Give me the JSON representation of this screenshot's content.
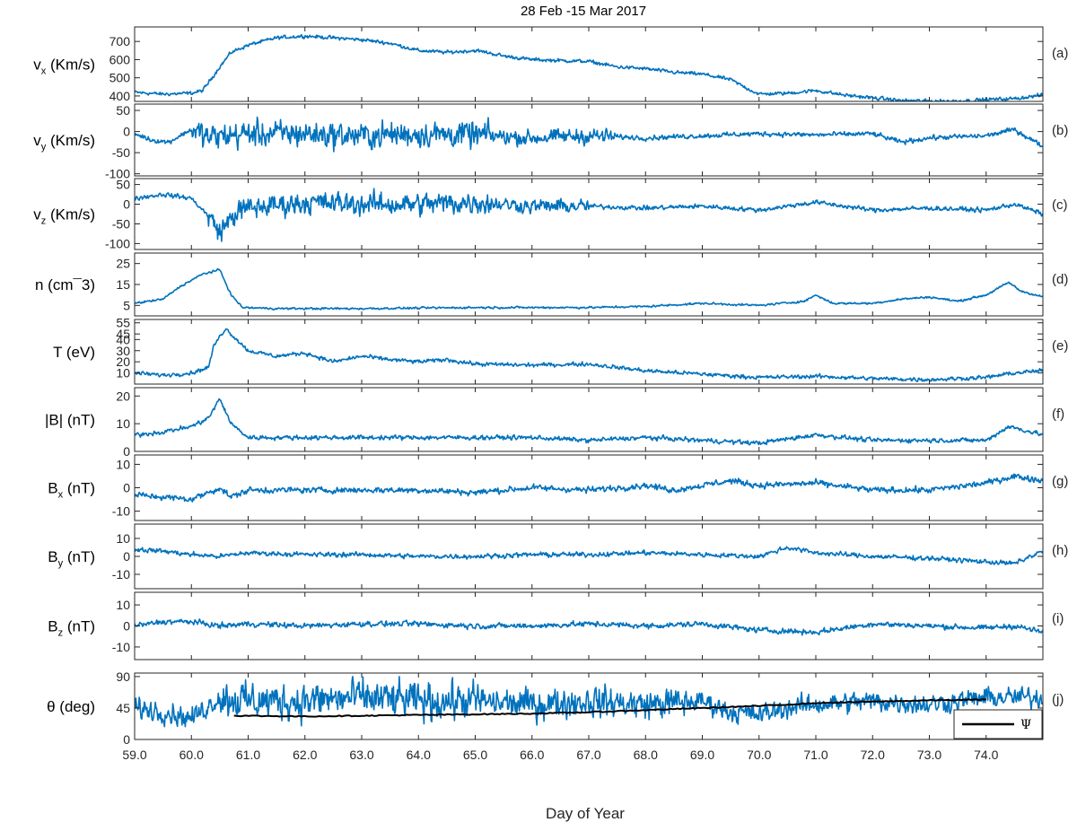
{
  "chart_data": {
    "type": "line",
    "title": "28 Feb -15 Mar 2017",
    "xlabel": "Day of Year",
    "xlim": [
      59.0,
      75.0
    ],
    "xticks": [
      "59.0",
      "60.0",
      "61.0",
      "62.0",
      "63.0",
      "64.0",
      "65.0",
      "66.0",
      "67.0",
      "68.0",
      "69.0",
      "70.0",
      "71.0",
      "72.0",
      "73.0",
      "74.0"
    ],
    "series_color": "#0072BD",
    "psi_color": "#000000",
    "panels": [
      {
        "id": "a",
        "tag": "(a)",
        "ylabel_main": "v",
        "ylabel_sub": "x",
        "ylabel_rest": " (Km/s)",
        "ylim": [
          370,
          780
        ],
        "yticks": [
          400,
          500,
          600,
          700
        ],
        "noise": 12,
        "trend": [
          [
            59.0,
            420
          ],
          [
            59.5,
            410
          ],
          [
            60.0,
            415
          ],
          [
            60.2,
            430
          ],
          [
            60.5,
            560
          ],
          [
            60.7,
            640
          ],
          [
            61.0,
            680
          ],
          [
            61.5,
            720
          ],
          [
            62.0,
            730
          ],
          [
            62.5,
            720
          ],
          [
            63.0,
            710
          ],
          [
            63.5,
            690
          ],
          [
            64.0,
            650
          ],
          [
            64.5,
            640
          ],
          [
            65.0,
            650
          ],
          [
            65.2,
            640
          ],
          [
            65.5,
            620
          ],
          [
            66.0,
            600
          ],
          [
            67.0,
            590
          ],
          [
            67.5,
            560
          ],
          [
            68.0,
            550
          ],
          [
            68.5,
            530
          ],
          [
            69.0,
            520
          ],
          [
            69.5,
            490
          ],
          [
            69.8,
            440
          ],
          [
            70.0,
            410
          ],
          [
            70.5,
            415
          ],
          [
            71.0,
            430
          ],
          [
            71.5,
            405
          ],
          [
            72.0,
            390
          ],
          [
            72.5,
            375
          ],
          [
            73.0,
            372
          ],
          [
            73.5,
            372
          ],
          [
            74.0,
            380
          ],
          [
            74.5,
            385
          ],
          [
            75.0,
            405
          ]
        ]
      },
      {
        "id": "b",
        "tag": "(b)",
        "ylabel_main": "v",
        "ylabel_sub": "y",
        "ylabel_rest": " (Km/s)",
        "ylim": [
          -105,
          65
        ],
        "yticks": [
          -100,
          -50,
          0,
          50
        ],
        "noise": 7,
        "trend": [
          [
            59.0,
            -5
          ],
          [
            59.3,
            -20
          ],
          [
            59.6,
            -25
          ],
          [
            60.0,
            5
          ],
          [
            60.3,
            -15
          ],
          [
            60.6,
            -10
          ],
          [
            61.0,
            -5
          ],
          [
            62.0,
            -5
          ],
          [
            63.0,
            -10
          ],
          [
            64.0,
            -5
          ],
          [
            65.0,
            -8
          ],
          [
            66.0,
            -15
          ],
          [
            67.0,
            -10
          ],
          [
            68.0,
            -15
          ],
          [
            69.0,
            -10
          ],
          [
            70.0,
            -5
          ],
          [
            71.0,
            -8
          ],
          [
            72.0,
            -5
          ],
          [
            72.5,
            -25
          ],
          [
            73.0,
            -15
          ],
          [
            74.0,
            -10
          ],
          [
            74.5,
            5
          ],
          [
            75.0,
            -35
          ]
        ],
        "bursts": [
          [
            60.0,
            65.3,
            38
          ],
          [
            65.3,
            67.5,
            22
          ]
        ]
      },
      {
        "id": "c",
        "tag": "(c)",
        "ylabel_main": "v",
        "ylabel_sub": "z",
        "ylabel_rest": " (Km/s)",
        "ylim": [
          -115,
          65
        ],
        "yticks": [
          -100,
          -50,
          0,
          50
        ],
        "noise": 7,
        "trend": [
          [
            59.0,
            15
          ],
          [
            59.5,
            25
          ],
          [
            60.0,
            15
          ],
          [
            60.3,
            -30
          ],
          [
            60.5,
            -70
          ],
          [
            60.8,
            -20
          ],
          [
            61.0,
            -10
          ],
          [
            62.0,
            5
          ],
          [
            63.0,
            0
          ],
          [
            64.0,
            0
          ],
          [
            65.0,
            5
          ],
          [
            66.0,
            -5
          ],
          [
            67.0,
            -5
          ],
          [
            68.0,
            -10
          ],
          [
            69.0,
            -5
          ],
          [
            70.0,
            -15
          ],
          [
            71.0,
            5
          ],
          [
            72.0,
            -15
          ],
          [
            73.0,
            -10
          ],
          [
            74.0,
            -15
          ],
          [
            74.5,
            0
          ],
          [
            75.0,
            -25
          ]
        ],
        "bursts": [
          [
            60.3,
            65.3,
            35
          ],
          [
            65.3,
            67.0,
            22
          ]
        ]
      },
      {
        "id": "d",
        "tag": "(d)",
        "ylabel_main": "n (cm",
        "ylabel_sub": "",
        "ylabel_rest": "¯3)",
        "ylim": [
          0,
          30
        ],
        "yticks": [
          5,
          15,
          25
        ],
        "noise": 0.6,
        "trend": [
          [
            59.0,
            6
          ],
          [
            59.5,
            8
          ],
          [
            59.8,
            14
          ],
          [
            60.2,
            20
          ],
          [
            60.5,
            22
          ],
          [
            60.7,
            10
          ],
          [
            60.9,
            4
          ],
          [
            61.5,
            3.5
          ],
          [
            63.0,
            3.5
          ],
          [
            65.0,
            4
          ],
          [
            67.0,
            4
          ],
          [
            68.0,
            4.5
          ],
          [
            69.0,
            6
          ],
          [
            70.0,
            5
          ],
          [
            70.8,
            7
          ],
          [
            71.0,
            10
          ],
          [
            71.3,
            6
          ],
          [
            72.0,
            6
          ],
          [
            72.5,
            8
          ],
          [
            73.0,
            9
          ],
          [
            73.5,
            7
          ],
          [
            74.0,
            10
          ],
          [
            74.4,
            16
          ],
          [
            74.6,
            12
          ],
          [
            75.0,
            9
          ]
        ]
      },
      {
        "id": "e",
        "tag": "(e)",
        "ylabel_main": "T (eV)",
        "ylabel_sub": "",
        "ylabel_rest": "",
        "ylim": [
          0,
          58
        ],
        "yticks": [
          10,
          20,
          30,
          40,
          45,
          55
        ],
        "noise": 2.2,
        "trend": [
          [
            59.0,
            10
          ],
          [
            59.5,
            8
          ],
          [
            60.0,
            10
          ],
          [
            60.3,
            15
          ],
          [
            60.4,
            35
          ],
          [
            60.6,
            50
          ],
          [
            60.8,
            40
          ],
          [
            61.0,
            30
          ],
          [
            61.5,
            25
          ],
          [
            62.0,
            28
          ],
          [
            62.5,
            20
          ],
          [
            63.0,
            25
          ],
          [
            63.5,
            22
          ],
          [
            64.0,
            20
          ],
          [
            64.5,
            22
          ],
          [
            65.0,
            18
          ],
          [
            66.0,
            17
          ],
          [
            67.0,
            18
          ],
          [
            68.0,
            12
          ],
          [
            69.0,
            9
          ],
          [
            70.0,
            6
          ],
          [
            71.0,
            7
          ],
          [
            72.0,
            5
          ],
          [
            73.0,
            4
          ],
          [
            74.0,
            6
          ],
          [
            74.5,
            10
          ],
          [
            75.0,
            12
          ]
        ]
      },
      {
        "id": "f",
        "tag": "(f)",
        "ylabel_main": "|B| (nT)",
        "ylabel_sub": "",
        "ylabel_rest": "",
        "ylim": [
          0,
          23
        ],
        "yticks": [
          0,
          10,
          20
        ],
        "noise": 1.0,
        "trend": [
          [
            59.0,
            6
          ],
          [
            59.5,
            7
          ],
          [
            60.0,
            9
          ],
          [
            60.3,
            12
          ],
          [
            60.5,
            19
          ],
          [
            60.7,
            10
          ],
          [
            61.0,
            5
          ],
          [
            62.0,
            5
          ],
          [
            63.0,
            5
          ],
          [
            64.0,
            5
          ],
          [
            65.0,
            5
          ],
          [
            66.0,
            5
          ],
          [
            67.0,
            4
          ],
          [
            68.0,
            5
          ],
          [
            69.0,
            4
          ],
          [
            70.0,
            3
          ],
          [
            71.0,
            6
          ],
          [
            72.0,
            4
          ],
          [
            73.0,
            4
          ],
          [
            74.0,
            4
          ],
          [
            74.4,
            9
          ],
          [
            75.0,
            6
          ]
        ]
      },
      {
        "id": "g",
        "tag": "(g)",
        "ylabel_main": "B",
        "ylabel_sub": "x",
        "ylabel_rest": " (nT)",
        "ylim": [
          -14,
          14
        ],
        "yticks": [
          -10,
          0,
          10
        ],
        "noise": 1.6,
        "trend": [
          [
            59.0,
            -3
          ],
          [
            59.5,
            -4
          ],
          [
            60.0,
            -5
          ],
          [
            60.3,
            -2
          ],
          [
            60.5,
            0
          ],
          [
            60.7,
            -4
          ],
          [
            61.0,
            -1
          ],
          [
            62.0,
            -1
          ],
          [
            63.0,
            -1
          ],
          [
            64.0,
            -1
          ],
          [
            65.0,
            -2
          ],
          [
            66.0,
            0
          ],
          [
            67.0,
            -1
          ],
          [
            68.0,
            1
          ],
          [
            68.5,
            -1
          ],
          [
            69.0,
            1
          ],
          [
            69.5,
            3
          ],
          [
            70.0,
            1
          ],
          [
            71.0,
            2
          ],
          [
            72.0,
            -1
          ],
          [
            73.0,
            -1
          ],
          [
            74.0,
            2
          ],
          [
            74.5,
            5
          ],
          [
            75.0,
            3
          ]
        ]
      },
      {
        "id": "h",
        "tag": "(h)",
        "ylabel_main": "B",
        "ylabel_sub": "y",
        "ylabel_rest": " (nT)",
        "ylim": [
          -18,
          18
        ],
        "yticks": [
          -10,
          0,
          10
        ],
        "noise": 1.6,
        "trend": [
          [
            59.0,
            4
          ],
          [
            59.5,
            3
          ],
          [
            60.0,
            1
          ],
          [
            60.5,
            0
          ],
          [
            61.0,
            2
          ],
          [
            62.0,
            1
          ],
          [
            63.0,
            1
          ],
          [
            64.0,
            0
          ],
          [
            65.0,
            0
          ],
          [
            66.0,
            1
          ],
          [
            67.0,
            1
          ],
          [
            68.0,
            2
          ],
          [
            69.0,
            1
          ],
          [
            70.0,
            0
          ],
          [
            70.5,
            5
          ],
          [
            71.0,
            2
          ],
          [
            72.0,
            0
          ],
          [
            73.0,
            -1
          ],
          [
            74.0,
            -3
          ],
          [
            74.5,
            -4
          ],
          [
            75.0,
            3
          ]
        ]
      },
      {
        "id": "i",
        "tag": "(i)",
        "ylabel_main": "B",
        "ylabel_sub": "z",
        "ylabel_rest": " (nT)",
        "ylim": [
          -16,
          16
        ],
        "yticks": [
          -10,
          0,
          10
        ],
        "noise": 1.6,
        "trend": [
          [
            59.0,
            0
          ],
          [
            59.5,
            2
          ],
          [
            60.0,
            2
          ],
          [
            60.5,
            0
          ],
          [
            61.0,
            1
          ],
          [
            62.0,
            0
          ],
          [
            63.0,
            1
          ],
          [
            64.0,
            1
          ],
          [
            65.0,
            0
          ],
          [
            66.0,
            0
          ],
          [
            67.0,
            1
          ],
          [
            68.0,
            0
          ],
          [
            69.0,
            1
          ],
          [
            70.0,
            -2
          ],
          [
            71.0,
            -3
          ],
          [
            72.0,
            1
          ],
          [
            73.0,
            0
          ],
          [
            74.0,
            -1
          ],
          [
            74.5,
            0
          ],
          [
            75.0,
            -3
          ]
        ]
      },
      {
        "id": "j",
        "tag": "(j)",
        "ylabel_main": "θ (deg)",
        "ylabel_sub": "",
        "ylabel_rest": "",
        "ylim": [
          0,
          95
        ],
        "yticks": [
          0,
          45,
          90
        ],
        "noise": 18,
        "trend": [
          [
            59.0,
            45
          ],
          [
            59.5,
            40
          ],
          [
            60.0,
            30
          ],
          [
            60.5,
            60
          ],
          [
            61.0,
            55
          ],
          [
            62.0,
            55
          ],
          [
            63.0,
            60
          ],
          [
            64.0,
            55
          ],
          [
            65.0,
            55
          ],
          [
            66.0,
            50
          ],
          [
            67.0,
            55
          ],
          [
            68.0,
            50
          ],
          [
            69.0,
            55
          ],
          [
            69.5,
            40
          ],
          [
            70.0,
            35
          ],
          [
            70.5,
            45
          ],
          [
            71.0,
            50
          ],
          [
            72.0,
            55
          ],
          [
            73.0,
            50
          ],
          [
            74.0,
            60
          ],
          [
            75.0,
            60
          ]
        ],
        "bursts": [
          [
            60.5,
            65.2,
            32
          ],
          [
            65.3,
            68.8,
            26
          ]
        ],
        "psi": [
          [
            60.75,
            34
          ],
          [
            62.0,
            33
          ],
          [
            63.0,
            34
          ],
          [
            64.0,
            35
          ],
          [
            65.0,
            36
          ],
          [
            66.0,
            37
          ],
          [
            67.0,
            39
          ],
          [
            68.0,
            42
          ],
          [
            69.0,
            45
          ],
          [
            70.0,
            48
          ],
          [
            71.0,
            52
          ],
          [
            72.0,
            54
          ],
          [
            73.0,
            56
          ],
          [
            74.0,
            57
          ]
        ],
        "legend": "Ψ"
      }
    ]
  }
}
